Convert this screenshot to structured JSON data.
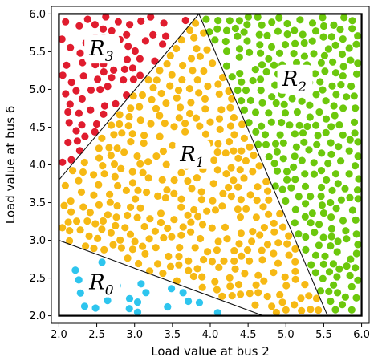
{
  "chart_data": {
    "type": "scatter",
    "title": "",
    "xlabel": "Load value at bus 2",
    "ylabel": "Load value at bus 6",
    "xlim": [
      1.9,
      6.1
    ],
    "ylim": [
      1.9,
      6.1
    ],
    "xticks": [
      "2.0",
      "2.5",
      "3.0",
      "3.5",
      "4.0",
      "4.5",
      "5.0",
      "5.5",
      "6.0"
    ],
    "yticks": [
      "2.0",
      "2.5",
      "3.0",
      "3.5",
      "4.0",
      "4.5",
      "5.0",
      "5.5",
      "6.0"
    ],
    "grid": false,
    "legend": "none",
    "frame": {
      "x": [
        2.0,
        6.0
      ],
      "y": [
        2.0,
        6.0
      ]
    },
    "boundaries": [
      {
        "from": [
          2.0,
          3.8
        ],
        "to": [
          3.85,
          6.0
        ]
      },
      {
        "from": [
          3.85,
          6.0
        ],
        "to": [
          5.55,
          2.0
        ]
      },
      {
        "from": [
          2.0,
          3.0
        ],
        "to": [
          4.7,
          2.0
        ]
      }
    ],
    "regions": [
      {
        "name": "R",
        "subscript": "0",
        "color": "#2ec5ee",
        "label_at": [
          2.4,
          2.35
        ],
        "polygon": [
          [
            2.0,
            2.0
          ],
          [
            2.0,
            3.0
          ],
          [
            4.7,
            2.0
          ]
        ],
        "count": 22
      },
      {
        "name": "R",
        "subscript": "1",
        "color": "#f6b914",
        "label_at": [
          3.6,
          4.05
        ],
        "polygon": [
          [
            2.0,
            3.0
          ],
          [
            2.0,
            3.8
          ],
          [
            3.85,
            6.0
          ],
          [
            5.55,
            2.0
          ],
          [
            4.7,
            2.0
          ]
        ],
        "count": 330
      },
      {
        "name": "R",
        "subscript": "2",
        "color": "#6cc80c",
        "label_at": [
          4.95,
          5.05
        ],
        "polygon": [
          [
            3.85,
            6.0
          ],
          [
            6.0,
            6.0
          ],
          [
            6.0,
            2.0
          ],
          [
            5.55,
            2.0
          ]
        ],
        "count": 260
      },
      {
        "name": "R",
        "subscript": "3",
        "color": "#e01c2e",
        "label_at": [
          2.4,
          5.45
        ],
        "polygon": [
          [
            2.0,
            3.8
          ],
          [
            2.0,
            6.0
          ],
          [
            3.85,
            6.0
          ]
        ],
        "count": 75
      }
    ]
  }
}
